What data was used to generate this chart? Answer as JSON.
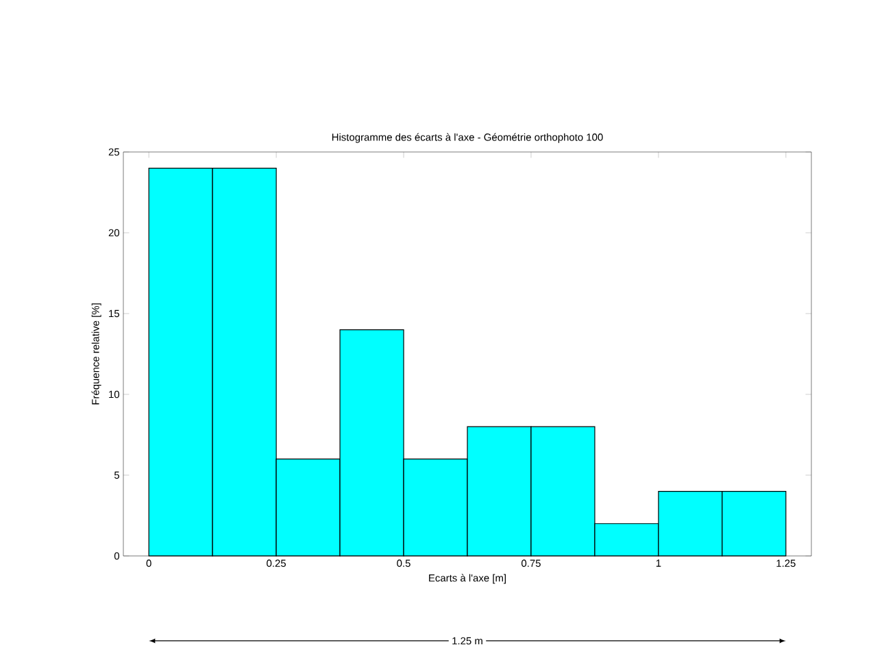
{
  "chart_data": {
    "type": "histogram",
    "title": "Histogramme des écarts à l'axe - Géométrie orthophoto 100",
    "xlabel": "Ecarts à l'axe [m]",
    "ylabel": "Fréquence relative [%]",
    "bins": [
      0,
      0.125,
      0.25,
      0.375,
      0.5,
      0.625,
      0.75,
      0.875,
      1,
      1.125,
      1.25
    ],
    "values": [
      24,
      24,
      6,
      14,
      6,
      8,
      8,
      2,
      4,
      4
    ],
    "color": "#00ffff",
    "xlim": [
      -0.05,
      1.3
    ],
    "ylim": [
      0,
      25
    ],
    "xticks": [
      0,
      0.25,
      0.5,
      0.75,
      1,
      1.25
    ],
    "yticks": [
      0,
      5,
      10,
      15,
      20,
      25
    ],
    "annotations": [
      "1.25 m"
    ]
  }
}
